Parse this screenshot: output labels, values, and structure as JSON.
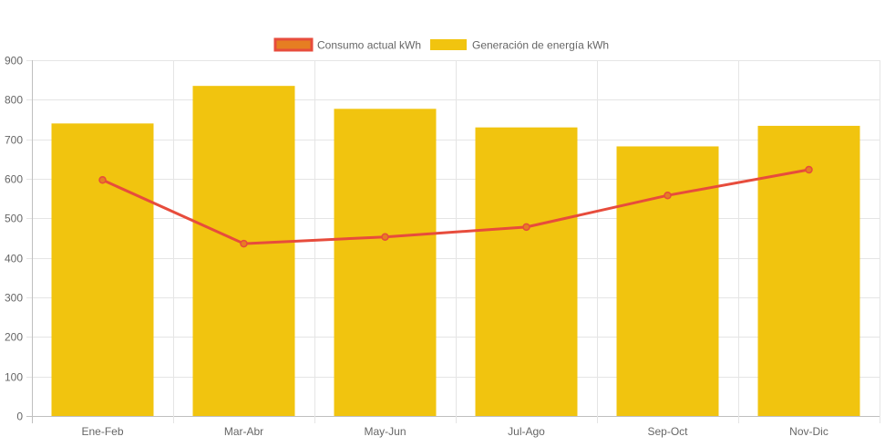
{
  "chart_data": {
    "type": "bar",
    "categories": [
      "Ene-Feb",
      "Mar-Abr",
      "May-Jun",
      "Jul-Ago",
      "Sep-Oct",
      "Nov-Dic"
    ],
    "series": [
      {
        "name": "Consumo actual kWh",
        "type": "line",
        "values": [
          597,
          436,
          453,
          478,
          558,
          623
        ],
        "color": "#e74c3c",
        "legend_fill": "#e67e22"
      },
      {
        "name": "Generación de energía kWh",
        "type": "bar",
        "values": [
          740,
          835,
          777,
          730,
          682,
          734
        ],
        "color": "#f1c40f"
      }
    ],
    "y_ticks": [
      "0",
      "100",
      "200",
      "300",
      "400",
      "500",
      "600",
      "700",
      "800",
      "900"
    ],
    "ylim": [
      0,
      900
    ],
    "grid": true,
    "legend_position": "top-center"
  }
}
